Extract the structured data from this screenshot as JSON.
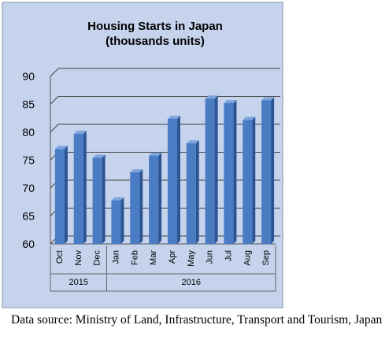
{
  "chart_data": {
    "type": "bar",
    "title_line1": "Housing Starts in Japan",
    "title_line2": "(thousands units)",
    "categories": [
      "Oct",
      "Nov",
      "Dec",
      "Jan",
      "Feb",
      "Mar",
      "Apr",
      "May",
      "Jun",
      "Jul",
      "Aug",
      "Sep"
    ],
    "values": [
      77.0,
      79.7,
      75.4,
      67.8,
      72.8,
      75.8,
      82.4,
      78.0,
      86.0,
      85.2,
      82.2,
      85.7
    ],
    "year_groups": [
      {
        "label": "2015",
        "count": 3
      },
      {
        "label": "2016",
        "count": 9
      }
    ],
    "yticks": [
      "60",
      "65",
      "70",
      "75",
      "80",
      "85",
      "90"
    ],
    "ylim": [
      60,
      90
    ],
    "xlabel": "",
    "ylabel": "",
    "grid": true,
    "colors": {
      "plot_background": "#c5d3ec",
      "bar_front": "#4a7cc4",
      "bar_side": "#2c5494",
      "bar_top": "#7ea4dc",
      "gridline": "#404040"
    }
  },
  "caption": "Data source: Ministry of Land, Infrastructure, Transport and Tourism, Japan"
}
